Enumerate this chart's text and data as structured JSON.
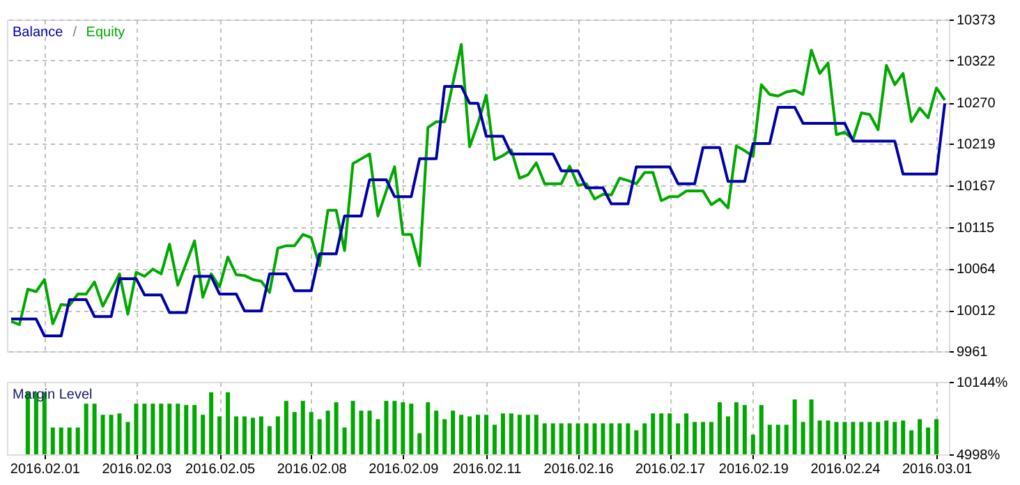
{
  "chart_data": [
    {
      "type": "line",
      "categories": [
        null,
        null,
        null,
        null,
        "2016.02.01",
        null,
        null,
        null,
        null,
        null,
        null,
        null,
        null,
        null,
        null,
        "2016.02.03",
        null,
        null,
        null,
        null,
        null,
        null,
        null,
        null,
        null,
        "2016.02.05",
        null,
        null,
        null,
        null,
        null,
        null,
        null,
        null,
        null,
        null,
        "2016.02.08",
        null,
        null,
        null,
        null,
        null,
        null,
        null,
        null,
        null,
        null,
        "2016.02.09",
        null,
        null,
        null,
        null,
        null,
        null,
        null,
        null,
        null,
        "2016.02.11",
        null,
        null,
        null,
        null,
        null,
        null,
        null,
        null,
        null,
        null,
        "2016.02.16",
        null,
        null,
        null,
        null,
        null,
        null,
        null,
        null,
        null,
        null,
        "2016.02.17",
        null,
        null,
        null,
        null,
        null,
        null,
        null,
        null,
        null,
        "2016.02.19",
        null,
        null,
        null,
        null,
        null,
        null,
        null,
        null,
        null,
        null,
        "2016.02.24",
        null,
        null,
        null,
        null,
        null,
        null,
        null,
        null,
        null,
        null,
        "2016.03.01",
        null
      ],
      "ylim": [
        9961,
        10373
      ],
      "yticks": [
        9961,
        10012,
        10064,
        10115,
        10167,
        10219,
        10270,
        10322,
        10373
      ],
      "grid": true,
      "tick_labels": "y",
      "annotations": [
        "/"
      ],
      "series": [
        {
          "name": "Balance",
          "color": "#0000a8",
          "values": [
            10001,
            10001,
            10001,
            10001,
            9980,
            9980,
            9980,
            10025,
            10025,
            10025,
            10004,
            10004,
            10004,
            10051,
            10051,
            10051,
            10031,
            10031,
            10031,
            10009,
            10009,
            10009,
            10054,
            10054,
            10054,
            10032,
            10032,
            10032,
            10011,
            10011,
            10011,
            10057,
            10057,
            10057,
            10036,
            10036,
            10036,
            10082,
            10082,
            10082,
            10129,
            10129,
            10129,
            10174,
            10174,
            10174,
            10153,
            10153,
            10153,
            10200,
            10200,
            10200,
            10290,
            10290,
            10290,
            10269,
            10269,
            10228,
            10228,
            10228,
            10206,
            10206,
            10206,
            10206,
            10206,
            10206,
            10185,
            10185,
            10185,
            10164,
            10164,
            10164,
            10144,
            10144,
            10144,
            10190,
            10190,
            10190,
            10190,
            10190,
            10169,
            10169,
            10169,
            10214,
            10214,
            10214,
            10172,
            10172,
            10172,
            10219,
            10219,
            10219,
            10264,
            10264,
            10264,
            10244,
            10244,
            10244,
            10244,
            10244,
            10244,
            10222,
            10222,
            10222,
            10222,
            10222,
            10222,
            10181,
            10181,
            10181,
            10181,
            10181,
            10269
          ]
        },
        {
          "name": "Equity",
          "color": "#00a800",
          "values": [
            9998,
            9994,
            10038,
            10035,
            10050,
            9995,
            10019,
            10018,
            10032,
            10032,
            10047,
            10017,
            10037,
            10057,
            10007,
            10059,
            10054,
            10063,
            10057,
            10094,
            10043,
            10070,
            10098,
            10028,
            10057,
            10041,
            10078,
            10056,
            10055,
            10050,
            10048,
            10034,
            10089,
            10092,
            10092,
            10106,
            10102,
            10067,
            10136,
            10136,
            10086,
            10194,
            10200,
            10206,
            10129,
            10160,
            10190,
            10106,
            10106,
            10067,
            10239,
            10246,
            10246,
            10294,
            10342,
            10215,
            10244,
            10279,
            10199,
            10204,
            10211,
            10176,
            10180,
            10195,
            10169,
            10169,
            10169,
            10191,
            10167,
            10169,
            10150,
            10156,
            10155,
            10176,
            10173,
            10169,
            10183,
            10183,
            10148,
            10153,
            10153,
            10160,
            10160,
            10160,
            10143,
            10150,
            10139,
            10216,
            10210,
            10203,
            10292,
            10280,
            10278,
            10283,
            10285,
            10280,
            10335,
            10306,
            10319,
            10230,
            10233,
            10224,
            10257,
            10255,
            10236,
            10316,
            10292,
            10306,
            10246,
            10263,
            10251,
            10288,
            10273
          ]
        }
      ]
    },
    {
      "type": "bar",
      "categories": [
        null,
        null,
        null,
        null,
        "2016.02.01",
        null,
        null,
        null,
        null,
        null,
        null,
        null,
        null,
        null,
        null,
        "2016.02.03",
        null,
        null,
        null,
        null,
        null,
        null,
        null,
        null,
        null,
        "2016.02.05",
        null,
        null,
        null,
        null,
        null,
        null,
        null,
        null,
        null,
        null,
        "2016.02.08",
        null,
        null,
        null,
        null,
        null,
        null,
        null,
        null,
        null,
        null,
        "2016.02.09",
        null,
        null,
        null,
        null,
        null,
        null,
        null,
        null,
        null,
        "2016.02.11",
        null,
        null,
        null,
        null,
        null,
        null,
        null,
        null,
        null,
        null,
        "2016.02.16",
        null,
        null,
        null,
        null,
        null,
        null,
        null,
        null,
        null,
        null,
        "2016.02.17",
        null,
        null,
        null,
        null,
        null,
        null,
        null,
        null,
        null,
        "2016.02.19",
        null,
        null,
        null,
        null,
        null,
        null,
        null,
        null,
        null,
        null,
        "2016.02.24",
        null,
        null,
        null,
        null,
        null,
        null,
        null,
        null,
        null,
        null,
        "2016.03.01",
        null
      ],
      "ylim": [
        4998,
        10144
      ],
      "yticks": [
        {
          "value": 4998,
          "label": "4998%"
        },
        {
          "value": 10144,
          "label": "10144%"
        }
      ],
      "grid": "x",
      "series": [
        {
          "name": "Margin Level",
          "color": "#00a800",
          "values": [
            null,
            null,
            9400,
            9400,
            9400,
            6900,
            6900,
            6900,
            6900,
            8600,
            8600,
            7800,
            7800,
            7900,
            7300,
            8600,
            8600,
            8600,
            8600,
            8600,
            8600,
            8500,
            8500,
            7800,
            9400,
            7700,
            9400,
            7700,
            7700,
            7600,
            7700,
            7000,
            7700,
            8800,
            8000,
            8800,
            8000,
            7500,
            8100,
            8700,
            6900,
            8800,
            8100,
            8100,
            7500,
            8800,
            8800,
            8700,
            8600,
            6500,
            8700,
            8100,
            7500,
            8100,
            7800,
            7700,
            7800,
            7800,
            7100,
            7900,
            7900,
            7800,
            7800,
            7800,
            7200,
            7200,
            7200,
            7200,
            7200,
            7200,
            7200,
            7200,
            7200,
            7200,
            7200,
            6700,
            7200,
            7900,
            7900,
            7900,
            7200,
            7900,
            7300,
            7300,
            7300,
            8700,
            7700,
            8700,
            8500,
            6400,
            8500,
            7100,
            7100,
            7100,
            8900,
            7300,
            8900,
            7400,
            7400,
            7300,
            7300,
            7300,
            7300,
            7300,
            7300,
            7400,
            7300,
            7400,
            6700,
            7500,
            6900,
            7500,
            null
          ]
        }
      ]
    }
  ]
}
